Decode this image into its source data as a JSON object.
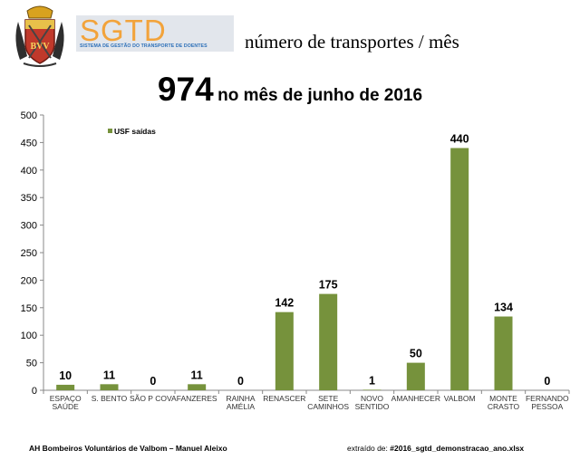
{
  "header": {
    "logo_text": "SGTD",
    "logo_subtitle": "SISTEMA DE GESTÃO DO TRANSPORTE DE DOENTES",
    "crest_initials": "BVV",
    "heading": "número de transportes / mês"
  },
  "colors": {
    "bar": "#76923c",
    "logo_orange": "#f2a33b",
    "logo_blue": "#2b6fb8"
  },
  "chart_data": {
    "type": "bar",
    "title_total": "974",
    "title_rest": "no mês de junho de 2016",
    "legend": "USF saídas",
    "categories": [
      [
        "ESPAÇO",
        "SAÚDE"
      ],
      [
        "S. BENTO"
      ],
      [
        "SÃO P COVA"
      ],
      [
        "FANZERES"
      ],
      [
        "RAINHA",
        "AMÉLIA"
      ],
      [
        "RENASCER"
      ],
      [
        "SETE",
        "CAMINHOS"
      ],
      [
        "NOVO",
        "SENTIDO"
      ],
      [
        "AMANHECER"
      ],
      [
        "VALBOM"
      ],
      [
        "MONTE",
        "CRASTO"
      ],
      [
        "FERNANDO",
        "PESSOA"
      ]
    ],
    "values": [
      10,
      11,
      0,
      11,
      0,
      142,
      175,
      1,
      50,
      440,
      134,
      0
    ],
    "yticks": [
      "0",
      "50",
      "100",
      "150",
      "200",
      "250",
      "300",
      "350",
      "400",
      "450",
      "500"
    ],
    "ylim": [
      0,
      500
    ],
    "xlabel": "",
    "ylabel": ""
  },
  "footer": {
    "left": "AH Bombeiros Voluntários de Valbom – Manuel Aleixo",
    "right_prefix": "extraído de: ",
    "right_file": "#2016_sgtd_demonstracao_ano.xlsx"
  }
}
